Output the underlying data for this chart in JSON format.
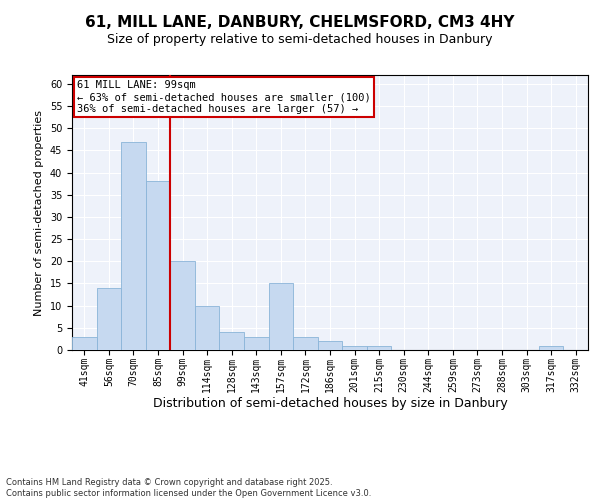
{
  "title1": "61, MILL LANE, DANBURY, CHELMSFORD, CM3 4HY",
  "title2": "Size of property relative to semi-detached houses in Danbury",
  "xlabel": "Distribution of semi-detached houses by size in Danbury",
  "ylabel": "Number of semi-detached properties",
  "categories": [
    "41sqm",
    "56sqm",
    "70sqm",
    "85sqm",
    "99sqm",
    "114sqm",
    "128sqm",
    "143sqm",
    "157sqm",
    "172sqm",
    "186sqm",
    "201sqm",
    "215sqm",
    "230sqm",
    "244sqm",
    "259sqm",
    "273sqm",
    "288sqm",
    "303sqm",
    "317sqm",
    "332sqm"
  ],
  "values": [
    3,
    14,
    47,
    38,
    20,
    10,
    4,
    3,
    15,
    3,
    2,
    1,
    1,
    0,
    0,
    0,
    0,
    0,
    0,
    1,
    0
  ],
  "bar_color": "#c6d9f0",
  "bar_edge_color": "#8ab4d8",
  "property_line_index": 4,
  "annotation_title": "61 MILL LANE: 99sqm",
  "annotation_line1": "← 63% of semi-detached houses are smaller (100)",
  "annotation_line2": "36% of semi-detached houses are larger (57) →",
  "annotation_box_color": "#ffffff",
  "annotation_box_edge": "#cc0000",
  "vline_color": "#cc0000",
  "ylim": [
    0,
    62
  ],
  "yticks": [
    0,
    5,
    10,
    15,
    20,
    25,
    30,
    35,
    40,
    45,
    50,
    55,
    60
  ],
  "bg_color": "#eef2fa",
  "footer": "Contains HM Land Registry data © Crown copyright and database right 2025.\nContains public sector information licensed under the Open Government Licence v3.0.",
  "title1_fontsize": 11,
  "title2_fontsize": 9,
  "xlabel_fontsize": 9,
  "ylabel_fontsize": 8,
  "tick_fontsize": 7,
  "annotation_fontsize": 7.5,
  "footer_fontsize": 6
}
